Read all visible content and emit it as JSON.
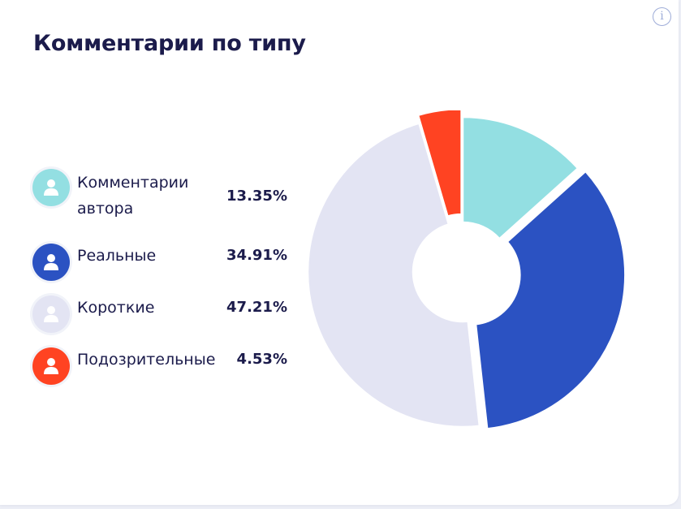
{
  "title": "Комментарии по типу",
  "info_icon": "info-icon",
  "legend": [
    {
      "label_lines": [
        "Комментарии",
        "автора"
      ],
      "value": "13.35%",
      "color": "#93dfe2",
      "icon": "user-icon"
    },
    {
      "label_lines": [
        "Реальные"
      ],
      "value": "34.91%",
      "color": "#2b52c2",
      "icon": "user-icon"
    },
    {
      "label_lines": [
        "Короткие"
      ],
      "value": "47.21%",
      "color": "#e3e4f3",
      "icon": "user-icon"
    },
    {
      "label_lines": [
        "Подозрительные"
      ],
      "value": "4.53%",
      "color": "#ff4322",
      "icon": "user-icon"
    }
  ],
  "chart_data": {
    "type": "pie",
    "title": "Комментарии по типу",
    "donut": true,
    "legend_position": "left",
    "slices": [
      {
        "label": "Комментарии автора",
        "value": 13.35,
        "color": "#93dfe2",
        "exploded": false
      },
      {
        "label": "Реальные",
        "value": 34.91,
        "color": "#2b52c2",
        "exploded": true
      },
      {
        "label": "Короткие",
        "value": 47.21,
        "color": "#e3e4f3",
        "exploded": false
      },
      {
        "label": "Подозрительные",
        "value": 4.53,
        "color": "#ff4322",
        "exploded": true
      }
    ]
  }
}
